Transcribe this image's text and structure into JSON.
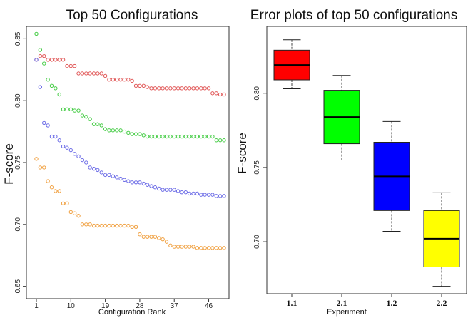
{
  "chart_data": [
    {
      "type": "scatter",
      "title": "Top 50 Configurations",
      "xlabel": "Configuration Rank",
      "ylabel": "F-score",
      "xlim": [
        1,
        50
      ],
      "ylim": [
        0.64,
        0.86
      ],
      "xticks": [
        1,
        10,
        19,
        28,
        37,
        46
      ],
      "yticks": [
        0.65,
        0.7,
        0.75,
        0.8,
        0.85
      ],
      "marker": "open-circle",
      "series": [
        {
          "color": "#e05555",
          "values": [
            0.833,
            0.836,
            0.836,
            0.833,
            0.833,
            0.833,
            0.833,
            0.833,
            0.828,
            0.828,
            0.828,
            0.822,
            0.822,
            0.822,
            0.822,
            0.822,
            0.822,
            0.822,
            0.82,
            0.817,
            0.817,
            0.817,
            0.817,
            0.817,
            0.817,
            0.816,
            0.812,
            0.812,
            0.812,
            0.811,
            0.81,
            0.81,
            0.81,
            0.81,
            0.81,
            0.81,
            0.81,
            0.81,
            0.81,
            0.81,
            0.81,
            0.81,
            0.81,
            0.81,
            0.81,
            0.81,
            0.806,
            0.806,
            0.805,
            0.805
          ]
        },
        {
          "color": "#44cc44",
          "values": [
            0.854,
            0.841,
            0.83,
            0.817,
            0.812,
            0.81,
            0.805,
            0.793,
            0.793,
            0.793,
            0.792,
            0.792,
            0.788,
            0.787,
            0.785,
            0.781,
            0.781,
            0.78,
            0.777,
            0.776,
            0.776,
            0.776,
            0.776,
            0.775,
            0.774,
            0.773,
            0.773,
            0.773,
            0.772,
            0.771,
            0.771,
            0.771,
            0.771,
            0.771,
            0.771,
            0.771,
            0.771,
            0.771,
            0.771,
            0.771,
            0.771,
            0.771,
            0.771,
            0.771,
            0.771,
            0.771,
            0.771,
            0.768,
            0.768,
            0.768
          ]
        },
        {
          "color": "#6a6ae6",
          "values": [
            0.833,
            0.811,
            0.782,
            0.78,
            0.771,
            0.771,
            0.768,
            0.763,
            0.762,
            0.76,
            0.757,
            0.755,
            0.752,
            0.75,
            0.746,
            0.745,
            0.744,
            0.742,
            0.74,
            0.74,
            0.739,
            0.738,
            0.737,
            0.736,
            0.735,
            0.734,
            0.734,
            0.734,
            0.733,
            0.732,
            0.731,
            0.73,
            0.729,
            0.728,
            0.728,
            0.728,
            0.728,
            0.727,
            0.726,
            0.726,
            0.725,
            0.725,
            0.725,
            0.724,
            0.724,
            0.724,
            0.724,
            0.723,
            0.723,
            0.723
          ]
        },
        {
          "color": "#f0a040",
          "values": [
            0.753,
            0.746,
            0.746,
            0.735,
            0.73,
            0.727,
            0.727,
            0.717,
            0.717,
            0.71,
            0.709,
            0.707,
            0.7,
            0.7,
            0.7,
            0.699,
            0.699,
            0.699,
            0.699,
            0.699,
            0.699,
            0.699,
            0.699,
            0.699,
            0.699,
            0.698,
            0.698,
            0.692,
            0.69,
            0.69,
            0.69,
            0.69,
            0.689,
            0.688,
            0.686,
            0.683,
            0.682,
            0.682,
            0.682,
            0.682,
            0.682,
            0.682,
            0.681,
            0.681,
            0.681,
            0.681,
            0.681,
            0.681,
            0.681,
            0.681
          ]
        }
      ]
    },
    {
      "type": "box",
      "title": "Error plots of top 50 configurations",
      "xlabel": "Experiment",
      "ylabel": "F-score",
      "ylim": [
        0.665,
        0.845
      ],
      "yticks": [
        0.7,
        0.75,
        0.8
      ],
      "categories": [
        "1.1",
        "2.1",
        "1.2",
        "2.2"
      ],
      "boxes": [
        {
          "color": "#ff0000",
          "whisker_low": 0.803,
          "q1": 0.809,
          "median": 0.819,
          "q3": 0.829,
          "whisker_high": 0.836
        },
        {
          "color": "#00ff00",
          "whisker_low": 0.755,
          "q1": 0.766,
          "median": 0.784,
          "q3": 0.802,
          "whisker_high": 0.812
        },
        {
          "color": "#0000ff",
          "whisker_low": 0.707,
          "q1": 0.721,
          "median": 0.744,
          "q3": 0.767,
          "whisker_high": 0.781
        },
        {
          "color": "#ffff00",
          "whisker_low": 0.67,
          "q1": 0.683,
          "median": 0.702,
          "q3": 0.721,
          "whisker_high": 0.733
        }
      ]
    }
  ]
}
